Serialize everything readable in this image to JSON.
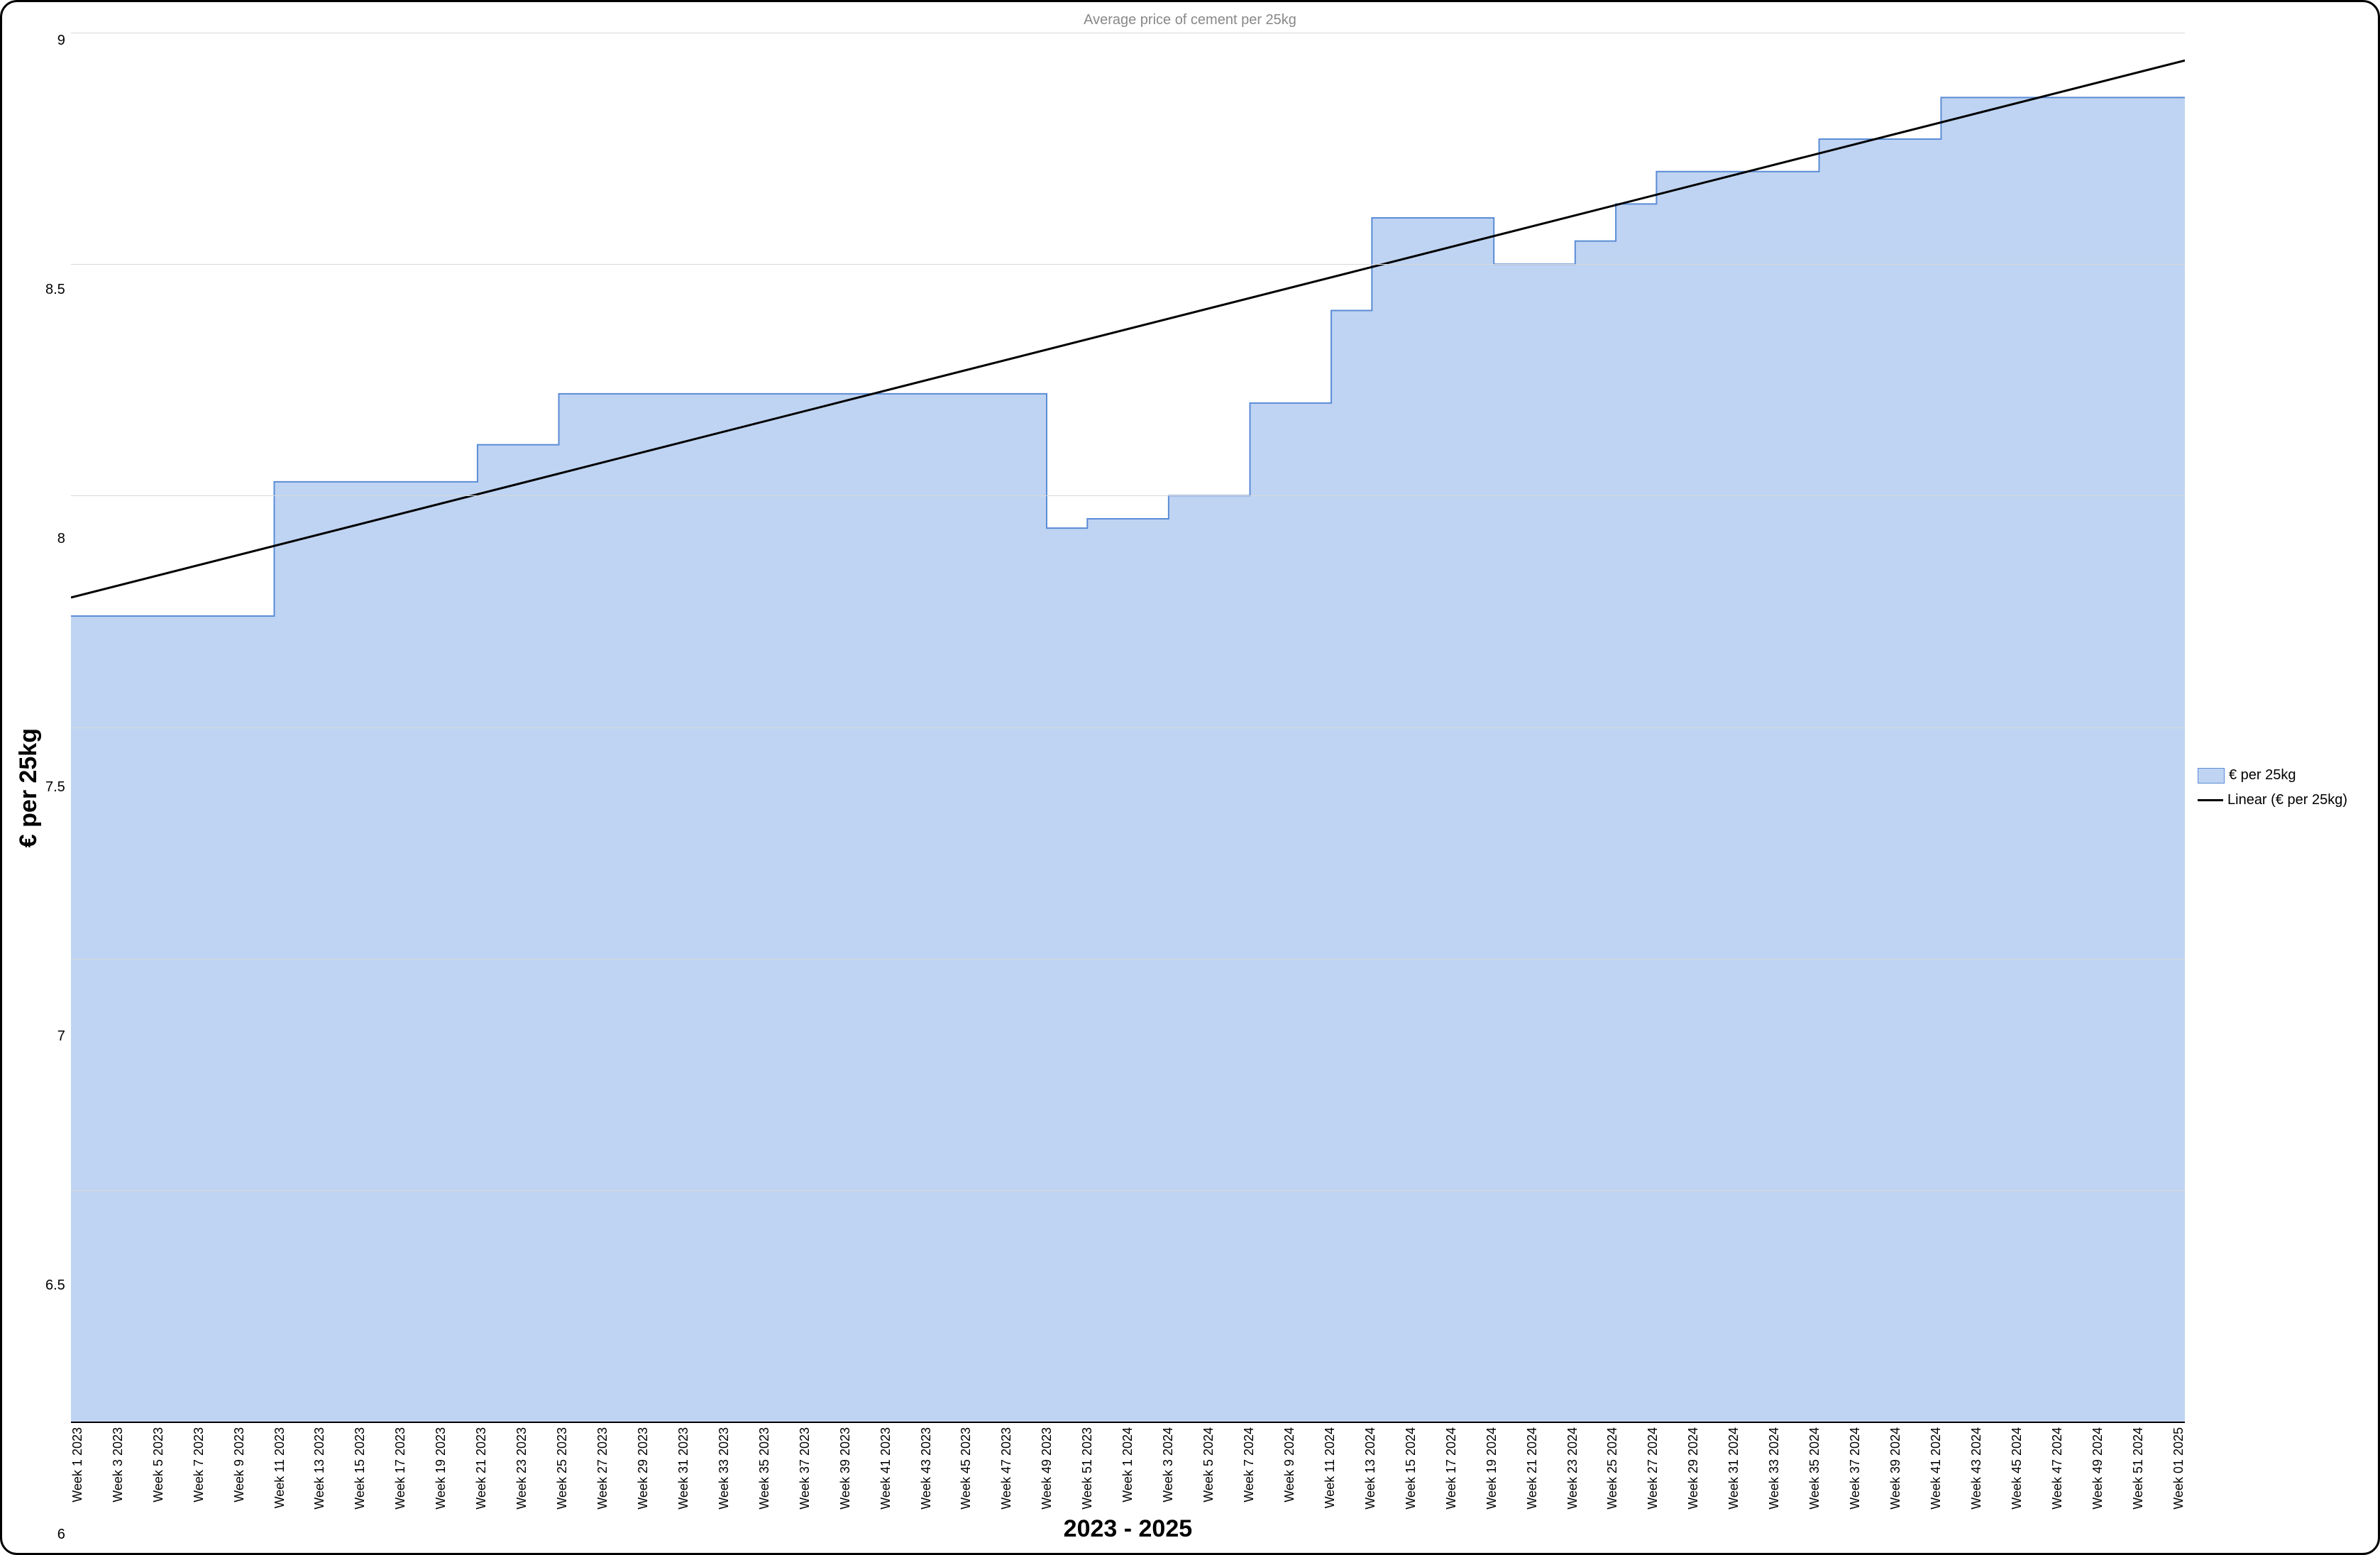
{
  "chart": {
    "type": "area",
    "title": "Average price of cement per 25kg",
    "title_color": "#888888",
    "title_fontsize": 20,
    "x_axis_title": "2023 - 2025",
    "y_axis_title": "€ per 25kg",
    "axis_title_fontsize": 34,
    "axis_title_fontweight": "700",
    "background_color": "#ffffff",
    "grid_color": "#d9d9d9",
    "area_fill": "#bfd4f2",
    "area_stroke": "#5b8cd6",
    "area_stroke_width": 2,
    "trend_color": "#000000",
    "trend_width": 3,
    "tick_fontsize_y": 20,
    "tick_fontsize_x": 18,
    "ylim": [
      6,
      9
    ],
    "ytick_step": 0.5,
    "y_ticks": [
      "9",
      "8.5",
      "8",
      "7.5",
      "7",
      "6.5",
      "6"
    ],
    "x_labels": [
      "Week 1 2023",
      "Week 3 2023",
      "Week 5 2023",
      "Week 7 2023",
      "Week 9 2023",
      "Week 11 2023",
      "Week 13 2023",
      "Week 15 2023",
      "Week 17 2023",
      "Week 19 2023",
      "Week 21 2023",
      "Week 23 2023",
      "Week 25 2023",
      "Week 27 2023",
      "Week 29 2023",
      "Week 31 2023",
      "Week 33 2023",
      "Week 35 2023",
      "Week 37 2023",
      "Week 39 2023",
      "Week 41 2023",
      "Week 43 2023",
      "Week 45 2023",
      "Week 47 2023",
      "Week 49 2023",
      "Week 51 2023",
      "Week 1 2024",
      "Week 3 2024",
      "Week 5 2024",
      "Week 7 2024",
      "Week 9 2024",
      "Week 11 2024",
      "Week 13 2024",
      "Week 15 2024",
      "Week 17 2024",
      "Week 19 2024",
      "Week 21 2024",
      "Week 23 2024",
      "Week 25 2024",
      "Week 27 2024",
      "Week 29 2024",
      "Week 31 2024",
      "Week 33 2024",
      "Week 35 2024",
      "Week 37 2024",
      "Week 39 2024",
      "Week 41 2024",
      "Week 43 2024",
      "Week 45 2024",
      "Week 47 2024",
      "Week 49 2024",
      "Week 51 2024",
      "Week 01 2025"
    ],
    "values": [
      7.74,
      7.74,
      7.74,
      7.74,
      7.74,
      8.03,
      8.03,
      8.03,
      8.03,
      8.03,
      8.11,
      8.11,
      8.22,
      8.22,
      8.22,
      8.22,
      8.22,
      8.22,
      8.22,
      8.22,
      8.22,
      8.22,
      8.22,
      8.22,
      7.93,
      7.95,
      7.95,
      8.0,
      8.0,
      8.2,
      8.2,
      8.4,
      8.6,
      8.6,
      8.6,
      8.5,
      8.5,
      8.55,
      8.63,
      8.7,
      8.7,
      8.7,
      8.7,
      8.77,
      8.77,
      8.77,
      8.86,
      8.86,
      8.86,
      8.86,
      8.86,
      8.86,
      8.86
    ],
    "trend": {
      "y_start": 7.78,
      "y_end": 8.94
    },
    "legend": {
      "series_label": "€ per 25kg",
      "trend_label": "Linear (€ per 25kg)"
    }
  }
}
